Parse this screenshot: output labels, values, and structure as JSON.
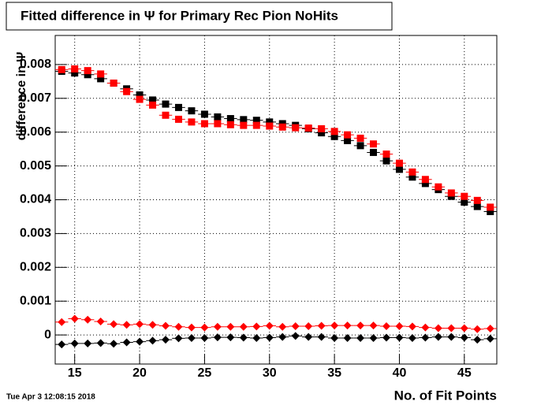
{
  "chart_data": {
    "type": "scatter",
    "title": "Fitted difference in  Ψ  for Primary Rec Pion NoHits",
    "x_label": "No. of Fit Points",
    "y_label": "difference in Ψ",
    "timestamp": "Tue Apr  3 12:08:15 2018",
    "x": [
      14,
      15,
      16,
      17,
      18,
      19,
      20,
      21,
      22,
      23,
      24,
      25,
      26,
      27,
      28,
      29,
      30,
      31,
      32,
      33,
      34,
      35,
      36,
      37,
      38,
      39,
      40,
      41,
      42,
      43,
      44,
      45,
      46,
      47
    ],
    "series": [
      {
        "color": "#000000",
        "marker": "square",
        "values": [
          0.0078,
          0.00775,
          0.0077,
          0.00758,
          0.00745,
          0.00728,
          0.0071,
          0.00695,
          0.00683,
          0.00673,
          0.00663,
          0.00653,
          0.00645,
          0.0064,
          0.00637,
          0.00635,
          0.0063,
          0.00625,
          0.0062,
          0.0061,
          0.00598,
          0.00587,
          0.00575,
          0.0056,
          0.0054,
          0.00515,
          0.0049,
          0.00467,
          0.00448,
          0.0043,
          0.0041,
          0.00393,
          0.0038,
          0.00365
        ]
      },
      {
        "color": "#ff0000",
        "marker": "square",
        "values": [
          0.00785,
          0.00787,
          0.00782,
          0.00772,
          0.00745,
          0.0072,
          0.00697,
          0.0068,
          0.0065,
          0.00638,
          0.0063,
          0.00625,
          0.00625,
          0.00622,
          0.0062,
          0.0062,
          0.00618,
          0.00615,
          0.00613,
          0.00612,
          0.0061,
          0.00602,
          0.00592,
          0.00582,
          0.00565,
          0.00535,
          0.00508,
          0.00482,
          0.0046,
          0.00438,
          0.0042,
          0.0041,
          0.00398,
          0.00378
        ]
      },
      {
        "color": "#ff0000",
        "marker": "diamond",
        "values": [
          0.00038,
          0.00048,
          0.00045,
          0.0004,
          0.00032,
          0.0003,
          0.00032,
          0.0003,
          0.00027,
          0.00024,
          0.00022,
          0.00022,
          0.00024,
          0.00024,
          0.00024,
          0.00025,
          0.00027,
          0.00024,
          0.00026,
          0.00026,
          0.00027,
          0.00028,
          0.00028,
          0.00028,
          0.00028,
          0.00026,
          0.00026,
          0.00025,
          0.00022,
          0.0002,
          0.0002,
          0.0002,
          0.00017,
          0.00019
        ]
      },
      {
        "color": "#000000",
        "marker": "diamond",
        "values": [
          -0.00028,
          -0.00025,
          -0.00025,
          -0.00024,
          -0.00026,
          -0.00022,
          -0.0002,
          -0.00017,
          -0.00014,
          -0.0001,
          -9e-05,
          -9e-05,
          -7e-05,
          -7e-05,
          -8e-05,
          -9e-05,
          -8e-05,
          -6e-05,
          -3e-05,
          -6e-05,
          -6e-05,
          -9e-05,
          -9e-05,
          -9e-05,
          -9e-05,
          -8e-05,
          -8e-05,
          -9e-05,
          -8e-05,
          -6e-05,
          -6e-05,
          -8e-05,
          -0.00014,
          -0.00011
        ]
      }
    ],
    "xlim": [
      13.5,
      47.5
    ],
    "xticks": [
      15,
      20,
      25,
      30,
      35,
      40,
      45
    ],
    "ylim": [
      -0.00086,
      0.00886
    ],
    "yticks": [
      0,
      0.001,
      0.002,
      0.003,
      0.004,
      0.005,
      0.006,
      0.007,
      0.008
    ],
    "grid": true
  }
}
